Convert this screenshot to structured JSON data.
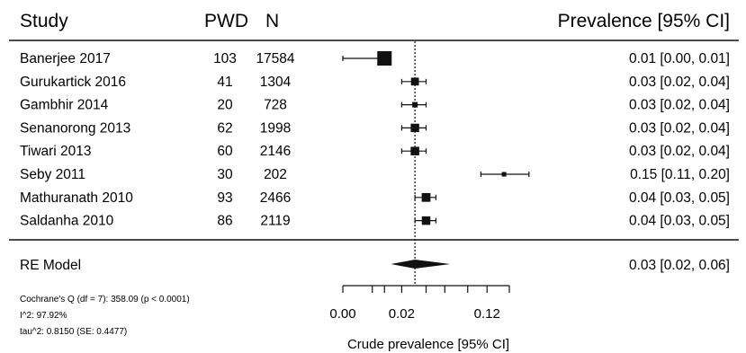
{
  "chart_data": {
    "type": "forest",
    "columns": {
      "study": "Study",
      "pwd": "PWD",
      "n": "N",
      "estimate": "Prevalence [95% CI]"
    },
    "studies": [
      {
        "study": "Banerjee 2017",
        "pwd": "103",
        "n": "17584",
        "est": 0.01,
        "lo": 0.0,
        "hi": 0.01,
        "label": "0.01 [0.00, 0.01]"
      },
      {
        "study": "Gurukartick 2016",
        "pwd": "41",
        "n": "1304",
        "est": 0.03,
        "lo": 0.02,
        "hi": 0.04,
        "label": "0.03 [0.02, 0.04]"
      },
      {
        "study": "Gambhir 2014",
        "pwd": "20",
        "n": "728",
        "est": 0.03,
        "lo": 0.02,
        "hi": 0.04,
        "label": "0.03 [0.02, 0.04]"
      },
      {
        "study": "Senanorong 2013",
        "pwd": "62",
        "n": "1998",
        "est": 0.03,
        "lo": 0.02,
        "hi": 0.04,
        "label": "0.03 [0.02, 0.04]"
      },
      {
        "study": "Tiwari 2013",
        "pwd": "60",
        "n": "2146",
        "est": 0.03,
        "lo": 0.02,
        "hi": 0.04,
        "label": "0.03 [0.02, 0.04]"
      },
      {
        "study": "Seby 2011",
        "pwd": "30",
        "n": "202",
        "est": 0.15,
        "lo": 0.11,
        "hi": 0.2,
        "label": "0.15 [0.11, 0.20]"
      },
      {
        "study": "Mathuranath 2010",
        "pwd": "93",
        "n": "2466",
        "est": 0.04,
        "lo": 0.03,
        "hi": 0.05,
        "label": "0.04 [0.03, 0.05]"
      },
      {
        "study": "Saldanha 2010",
        "pwd": "86",
        "n": "2119",
        "est": 0.04,
        "lo": 0.03,
        "hi": 0.05,
        "label": "0.04 [0.03, 0.05]"
      }
    ],
    "summary": {
      "name": "RE Model",
      "est": 0.03,
      "lo": 0.02,
      "hi": 0.06,
      "label": "0.03 [0.02, 0.06]"
    },
    "heterogeneity": [
      "Cochrane's Q (df = 7): 358.09 (p < 0.0001)",
      "I^2: 97.92%",
      "tau^2: 0.8150 (SE: 0.4477)"
    ],
    "x_axis": {
      "label": "Crude prevalence [95% CI]",
      "scale": "sqrt",
      "ticks": [
        0.0,
        0.02,
        0.12
      ],
      "tick_labels": [
        "0.00",
        "0.02",
        "0.12"
      ],
      "minor_ticks": [
        0.005,
        0.01,
        0.04,
        0.06,
        0.09,
        0.16
      ]
    },
    "reference_line": 0.03,
    "colors": {
      "ink": "#111111"
    }
  }
}
